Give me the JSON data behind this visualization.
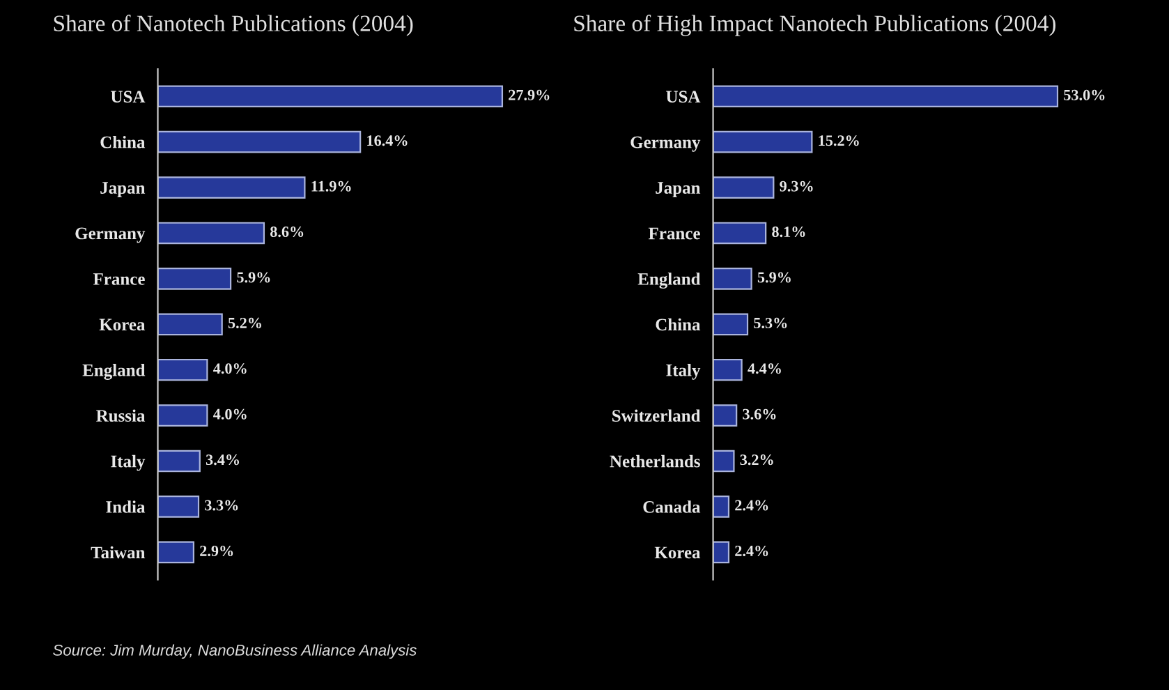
{
  "chart_data": [
    {
      "type": "bar",
      "orientation": "horizontal",
      "title": "Share of Nanotech Publications (2004)",
      "categories": [
        "USA",
        "China",
        "Japan",
        "Germany",
        "France",
        "Korea",
        "England",
        "Russia",
        "Italy",
        "India",
        "Taiwan"
      ],
      "values": [
        27.9,
        16.4,
        11.9,
        8.6,
        5.9,
        5.2,
        4.0,
        4.0,
        3.4,
        3.3,
        2.9
      ],
      "value_labels": [
        "27.9%",
        "16.4%",
        "11.9%",
        "8.6%",
        "5.9%",
        "5.2%",
        "4.0%",
        "4.0%",
        "3.4%",
        "3.3%",
        "2.9%"
      ],
      "color": "#26399a",
      "annotations": [
        "Source: Jim Murday, NanoBusiness Alliance Analysis"
      ]
    },
    {
      "type": "bar",
      "orientation": "horizontal",
      "title": "Share of High Impact Nanotech Publications (2004)",
      "categories": [
        "USA",
        "Germany",
        "Japan",
        "France",
        "England",
        "China",
        "Italy",
        "Switzerland",
        "Netherlands",
        "Canada",
        "Korea"
      ],
      "values": [
        53.0,
        15.2,
        9.3,
        8.1,
        5.9,
        5.3,
        4.4,
        3.6,
        3.2,
        2.4,
        2.4
      ],
      "value_labels": [
        "53.0%",
        "15.2%",
        "9.3%",
        "8.1%",
        "5.9%",
        "5.3%",
        "4.4%",
        "3.6%",
        "3.2%",
        "2.4%",
        "2.4%"
      ],
      "color": "#26399a"
    }
  ]
}
